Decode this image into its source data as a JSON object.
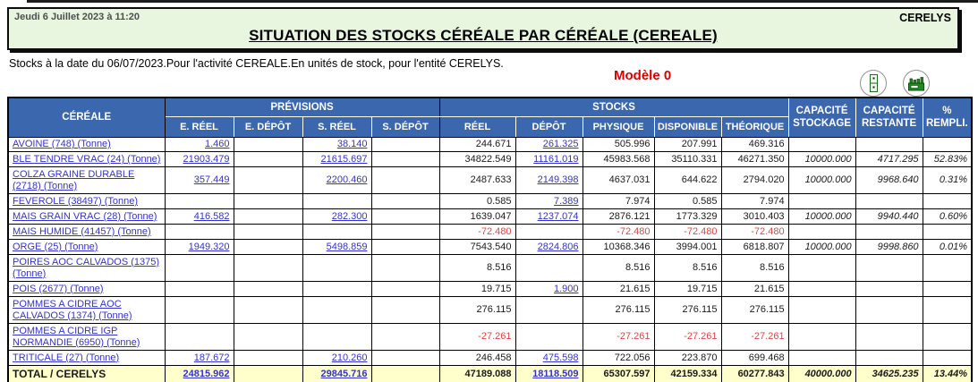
{
  "header": {
    "datetime": "Jeudi 6 Juillet 2023 à 11:20",
    "entity": "CERELYS",
    "title": "SITUATION DES STOCKS CÉRÉALE PAR CÉRÉALE (CEREALE)",
    "subtitle": "Stocks à la date du 06/07/2023.Pour l'activité CEREALE.En unités de stock, pour l'entité CERELYS.",
    "model": "Modèle 0",
    "icons": [
      "archive-cabinet-icon",
      "factory-icon"
    ]
  },
  "colors": {
    "band_green": "#e8f6e0",
    "header_blue": "#3a67ad",
    "total_yellow": "#ffffcc",
    "link_blue": "#3333cc",
    "negative_red": "#e04646",
    "model_red": "#d90000"
  },
  "table": {
    "header": {
      "cereale": "CÉRÉALE",
      "previsions": "PRÉVISIONS",
      "stocks": "STOCKS",
      "sub": [
        "E. RÉEL",
        "E. DÉPÔT",
        "S. RÉEL",
        "S. DÉPÔT",
        "RÉEL",
        "DÉPÔT",
        "PHYSIQUE",
        "DISPONIBLE",
        "THÉORIQUE"
      ],
      "cap_stock": "CAPACITÉ STOCKAGE",
      "cap_rest": "CAPACITÉ RESTANTE",
      "pct": "% REMPLI."
    },
    "columns": [
      {
        "key": "e_reel",
        "style": "link"
      },
      {
        "key": "e_depot",
        "style": "link"
      },
      {
        "key": "s_reel",
        "style": "link"
      },
      {
        "key": "s_depot",
        "style": "link"
      },
      {
        "key": "reel",
        "style": "plain"
      },
      {
        "key": "depot",
        "style": "link"
      },
      {
        "key": "physique",
        "style": "plain"
      },
      {
        "key": "disponible",
        "style": "plain"
      },
      {
        "key": "theorique",
        "style": "plain"
      },
      {
        "key": "cap_stock",
        "style": "cap"
      },
      {
        "key": "cap_rest",
        "style": "cap"
      },
      {
        "key": "pct",
        "style": "cap"
      }
    ],
    "rows": [
      {
        "label": "AVOINE (748) (Tonne)",
        "e_reel": "1.460",
        "e_depot": "",
        "s_reel": "38.140",
        "s_depot": "",
        "reel": "244.671",
        "depot": "261.325",
        "physique": "505.996",
        "disponible": "207.991",
        "theorique": "469.316",
        "cap_stock": "",
        "cap_rest": "",
        "pct": ""
      },
      {
        "label": "BLE TENDRE VRAC (24) (Tonne)",
        "e_reel": "21903.479",
        "e_depot": "",
        "s_reel": "21615.697",
        "s_depot": "",
        "reel": "34822.549",
        "depot": "11161.019",
        "physique": "45983.568",
        "disponible": "35110.331",
        "theorique": "46271.350",
        "cap_stock": "10000.000",
        "cap_rest": "4717.295",
        "pct": "52.83%"
      },
      {
        "label": "COLZA GRAINE DURABLE (2718) (Tonne)",
        "e_reel": "357.449",
        "e_depot": "",
        "s_reel": "2200.460",
        "s_depot": "",
        "reel": "2487.633",
        "depot": "2149.398",
        "physique": "4637.031",
        "disponible": "644.622",
        "theorique": "2794.020",
        "cap_stock": "10000.000",
        "cap_rest": "9968.640",
        "pct": "0.31%"
      },
      {
        "label": "FEVEROLE (38497) (Tonne)",
        "e_reel": "",
        "e_depot": "",
        "s_reel": "",
        "s_depot": "",
        "reel": "0.585",
        "depot": "7.389",
        "physique": "7.974",
        "disponible": "0.585",
        "theorique": "7.974",
        "cap_stock": "",
        "cap_rest": "",
        "pct": ""
      },
      {
        "label": "MAIS GRAIN VRAC (28) (Tonne)",
        "e_reel": "416.582",
        "e_depot": "",
        "s_reel": "282.300",
        "s_depot": "",
        "reel": "1639.047",
        "depot": "1237.074",
        "physique": "2876.121",
        "disponible": "1773.329",
        "theorique": "3010.403",
        "cap_stock": "10000.000",
        "cap_rest": "9940.440",
        "pct": "0.60%"
      },
      {
        "label": "MAIS HUMIDE (41457) (Tonne)",
        "e_reel": "",
        "e_depot": "",
        "s_reel": "",
        "s_depot": "",
        "reel": "-72.480",
        "depot": "",
        "physique": "-72.480",
        "disponible": "-72.480",
        "theorique": "-72.480",
        "cap_stock": "",
        "cap_rest": "",
        "pct": ""
      },
      {
        "label": "ORGE (25) (Tonne)",
        "e_reel": "1949.320",
        "e_depot": "",
        "s_reel": "5498.859",
        "s_depot": "",
        "reel": "7543.540",
        "depot": "2824.806",
        "physique": "10368.346",
        "disponible": "3994.001",
        "theorique": "6818.807",
        "cap_stock": "10000.000",
        "cap_rest": "9998.860",
        "pct": "0.01%"
      },
      {
        "label": "POIRES AOC CALVADOS (1375) (Tonne)",
        "e_reel": "",
        "e_depot": "",
        "s_reel": "",
        "s_depot": "",
        "reel": "8.516",
        "depot": "",
        "physique": "8.516",
        "disponible": "8.516",
        "theorique": "8.516",
        "cap_stock": "",
        "cap_rest": "",
        "pct": ""
      },
      {
        "label": "POIS (2677) (Tonne)",
        "e_reel": "",
        "e_depot": "",
        "s_reel": "",
        "s_depot": "",
        "reel": "19.715",
        "depot": "1.900",
        "physique": "21.615",
        "disponible": "19.715",
        "theorique": "21.615",
        "cap_stock": "",
        "cap_rest": "",
        "pct": ""
      },
      {
        "label": "POMMES A CIDRE AOC CALVADOS (1374) (Tonne)",
        "e_reel": "",
        "e_depot": "",
        "s_reel": "",
        "s_depot": "",
        "reel": "276.115",
        "depot": "",
        "physique": "276.115",
        "disponible": "276.115",
        "theorique": "276.115",
        "cap_stock": "",
        "cap_rest": "",
        "pct": ""
      },
      {
        "label": "POMMES A CIDRE IGP NORMANDIE (6950) (Tonne)",
        "e_reel": "",
        "e_depot": "",
        "s_reel": "",
        "s_depot": "",
        "reel": "-27.261",
        "depot": "",
        "physique": "-27.261",
        "disponible": "-27.261",
        "theorique": "-27.261",
        "cap_stock": "",
        "cap_rest": "",
        "pct": ""
      },
      {
        "label": "TRITICALE (27) (Tonne)",
        "e_reel": "187.672",
        "e_depot": "",
        "s_reel": "210.260",
        "s_depot": "",
        "reel": "246.458",
        "depot": "475.598",
        "physique": "722.056",
        "disponible": "223.870",
        "theorique": "699.468",
        "cap_stock": "",
        "cap_rest": "",
        "pct": ""
      }
    ],
    "total_row": {
      "label": "TOTAL / CERELYS",
      "e_reel": "24815.962",
      "e_depot": "",
      "s_reel": "29845.716",
      "s_depot": "",
      "reel": "47189.088",
      "depot": "18118.509",
      "physique": "65307.597",
      "disponible": "42159.334",
      "theorique": "60277.843",
      "cap_stock": "40000.000",
      "cap_rest": "34625.235",
      "pct": "13.44%"
    }
  }
}
